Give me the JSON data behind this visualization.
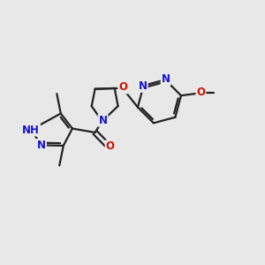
{
  "background_color": "#e8e8e8",
  "bond_color": "#222222",
  "nitrogen_color": "#1414cc",
  "oxygen_color": "#cc1100",
  "line_width": 1.6,
  "dpi": 100,
  "fig_width": 3.0,
  "fig_height": 3.0,
  "xlim": [
    0,
    1
  ],
  "ylim": [
    0,
    1
  ],
  "font_size": 8.5
}
